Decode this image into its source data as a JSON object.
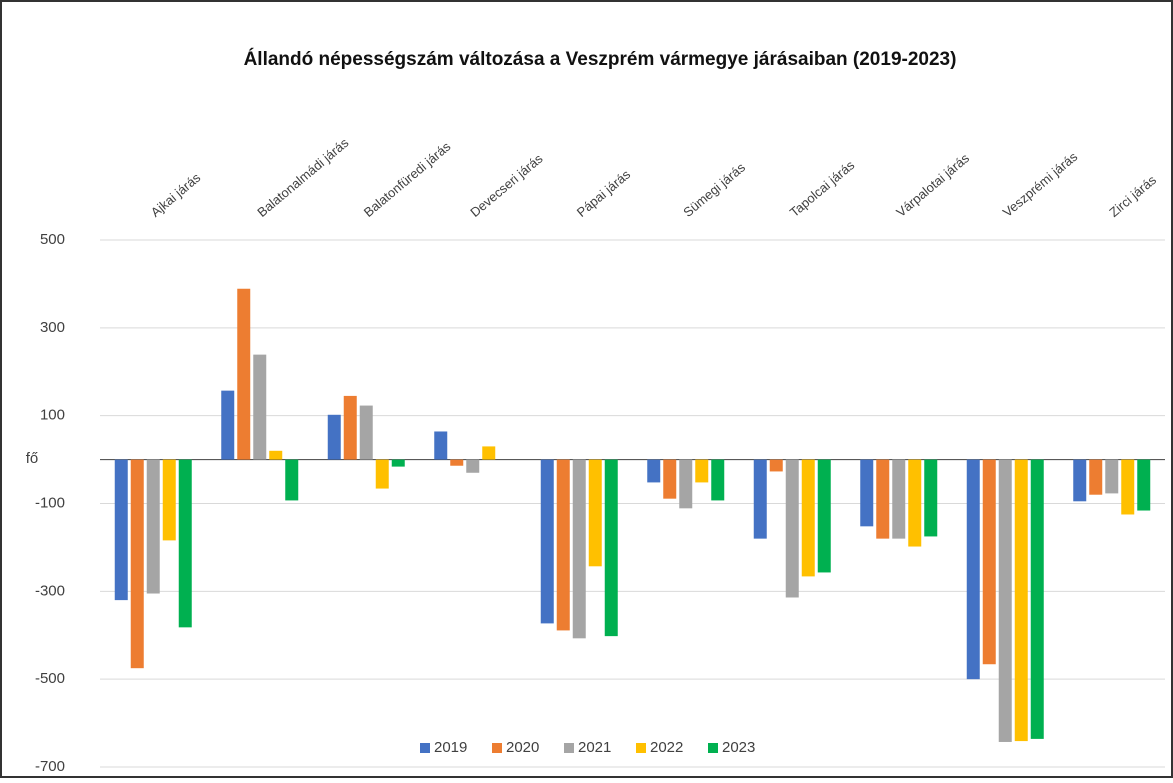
{
  "chart_data": {
    "type": "bar",
    "title": "Állandó népességszám változása a Veszprém vármegye járásaiban (2019-2023)",
    "ylabel": "fő",
    "categories": [
      "Ajkai járás",
      "Balatonalmádi járás",
      "Balatonfüredi járás",
      "Devecseri járás",
      "Pápai járás",
      "Sümegi járás",
      "Tapolcai járás",
      "Várpalotai járás",
      "Veszprémi járás",
      "Zirci járás"
    ],
    "series": [
      {
        "name": "2019",
        "color": "#4472c4",
        "values": [
          -320,
          157,
          102,
          64,
          -373,
          -52,
          -180,
          -152,
          -500,
          -95
        ]
      },
      {
        "name": "2020",
        "color": "#ed7d31",
        "values": [
          -475,
          389,
          145,
          -14,
          -389,
          -89,
          -27,
          -180,
          -466,
          -80
        ]
      },
      {
        "name": "2021",
        "color": "#a5a5a5",
        "values": [
          -305,
          239,
          123,
          -30,
          -407,
          -111,
          -314,
          -180,
          -643,
          -77
        ]
      },
      {
        "name": "2022",
        "color": "#ffc000",
        "values": [
          -184,
          20,
          -66,
          30,
          -243,
          -52,
          -266,
          -198,
          -641,
          -125
        ]
      },
      {
        "name": "2023",
        "color": "#00b050",
        "values": [
          -382,
          -93,
          -16,
          0,
          -402,
          -93,
          -257,
          -175,
          -636,
          -116
        ]
      }
    ],
    "ylim": [
      -700,
      500
    ],
    "yticks": [
      -700,
      -500,
      -300,
      -100,
      100,
      300,
      500
    ],
    "grid": true,
    "legend": "bottom"
  }
}
